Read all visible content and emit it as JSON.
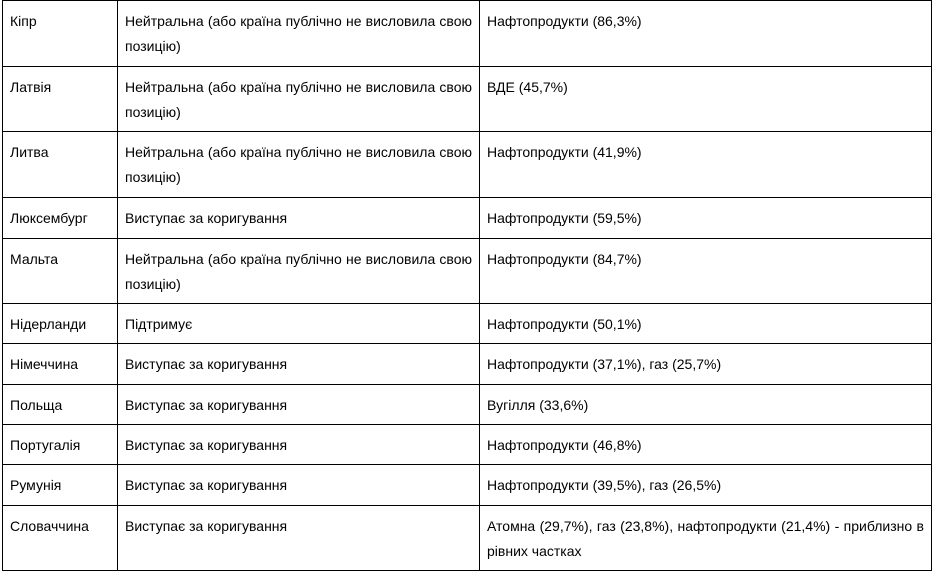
{
  "table": {
    "rows": [
      [
        "Кіпр",
        "Нейтральна (або країна публічно не висловила свою позицію)",
        "Нафтопродукти (86,3%)"
      ],
      [
        "Латвія",
        "Нейтральна (або країна публічно не висловила свою позицію)",
        "ВДЕ (45,7%)"
      ],
      [
        "Литва",
        "Нейтральна (або країна публічно не висловила свою позицію)",
        "Нафтопродукти (41,9%)"
      ],
      [
        "Люксембург",
        "Виступає за коригування",
        "Нафтопродукти (59,5%)"
      ],
      [
        "Мальта",
        "Нейтральна (або країна публічно не висловила свою позицію)",
        "Нафтопродукти (84,7%)"
      ],
      [
        "Нідерланди",
        "Підтримує",
        "Нафтопродукти (50,1%)"
      ],
      [
        "Німеччина",
        "Виступає за коригування",
        "Нафтопродукти (37,1%), газ (25,7%)"
      ],
      [
        "Польща",
        "Виступає за коригування",
        "Вугілля (33,6%)"
      ],
      [
        "Португалія",
        "Виступає за коригування",
        "Нафтопродукти (46,8%)"
      ],
      [
        "Румунія",
        "Виступає за коригування",
        "Нафтопродукти (39,5%), газ (26,5%)"
      ],
      [
        "Словаччина",
        "Виступає за коригування",
        "Атомна (29,7%), газ (23,8%), нафтопродукти (21,4%) - приблизно в рівних частках"
      ]
    ]
  }
}
